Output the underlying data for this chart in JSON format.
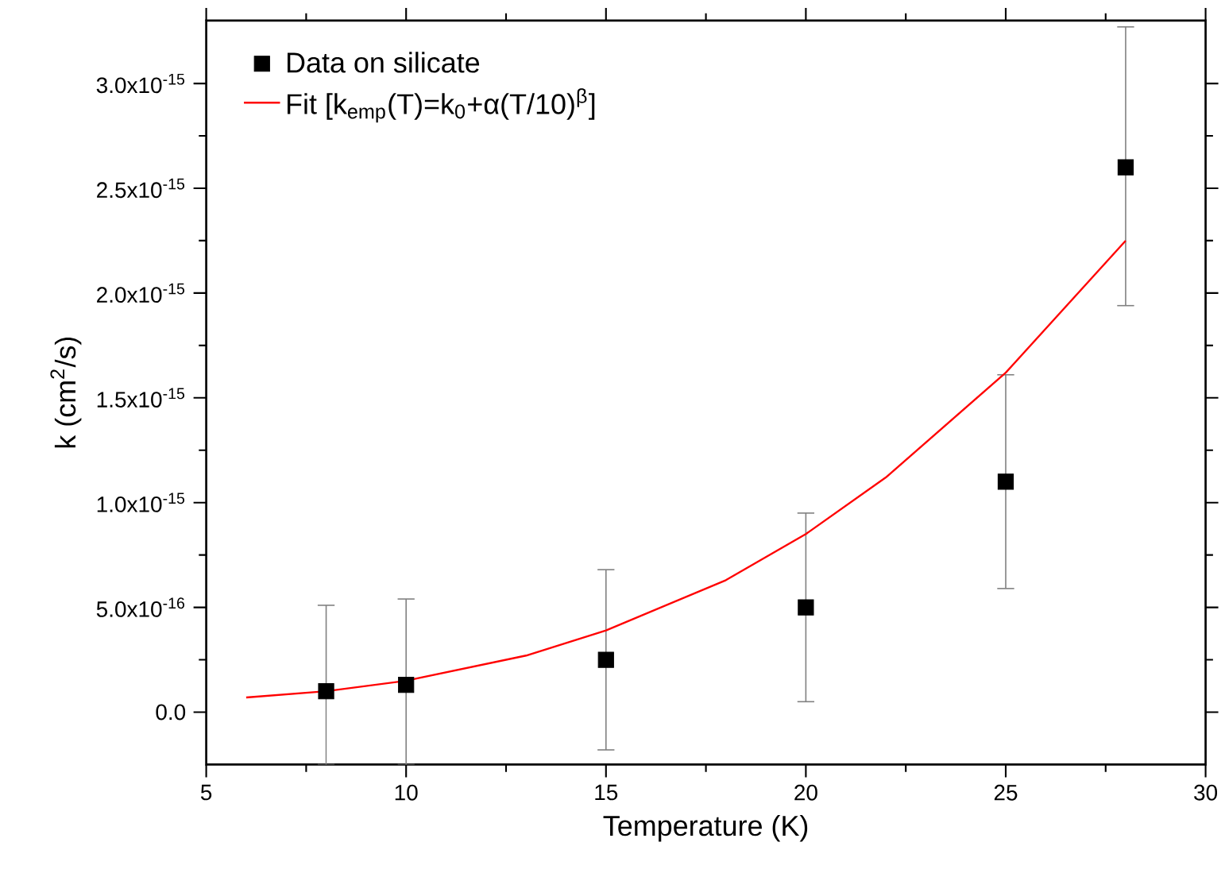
{
  "chart_data": {
    "type": "scatter",
    "xlabel": "Temperature (K)",
    "ylabel": "k (cm$^{2}$/s)",
    "xlim": [
      5,
      30
    ],
    "ylim": [
      -2.5e-16,
      3.3e-15
    ],
    "xticks": [
      5,
      10,
      15,
      20,
      25,
      30
    ],
    "yticks": [
      {
        "value": 0,
        "label": "0.0"
      },
      {
        "value": 5e-16,
        "label": "5.0x10$^{-16}$"
      },
      {
        "value": 1e-15,
        "label": "1.0x10$^{-15}$"
      },
      {
        "value": 1.5e-15,
        "label": "1.5x10$^{-15}$"
      },
      {
        "value": 2e-15,
        "label": "2.0x10$^{-15}$"
      },
      {
        "value": 2.5e-15,
        "label": "2.5x10$^{-15}$"
      },
      {
        "value": 3e-15,
        "label": "3.0x10$^{-15}$"
      }
    ],
    "grid": false,
    "legend": "top left",
    "series": [
      {
        "name": "Data on silicate",
        "marker": "square",
        "color": "#000000",
        "x": [
          8,
          10,
          15,
          20,
          25,
          28
        ],
        "values": [
          1e-16,
          1.3e-16,
          2.5e-16,
          5e-16,
          1.1e-15,
          2.6e-15
        ],
        "errors": [
          [
            -2.5e-16,
            5.1e-16
          ],
          [
            -2.5e-16,
            5.4e-16
          ],
          [
            -1.8e-16,
            6.8e-16
          ],
          [
            5e-17,
            9.5e-16
          ],
          [
            5.9e-16,
            1.61e-15
          ],
          [
            1.94e-15,
            3.27e-15
          ]
        ]
      },
      {
        "name": "Fit [k$_{emp}$(T)=k$_{0}$+α(T/10)$^{β}$]",
        "type": "line",
        "marker": "none",
        "line_style": "solid",
        "color": "#ff0000",
        "x": [
          6,
          8,
          10,
          13,
          15,
          18,
          20,
          22,
          25,
          28
        ],
        "values": [
          7e-17,
          1e-16,
          1.5e-16,
          2.7e-16,
          3.9e-16,
          6.3e-16,
          8.5e-16,
          1.12e-15,
          1.62e-15,
          2.25e-15
        ]
      }
    ]
  }
}
